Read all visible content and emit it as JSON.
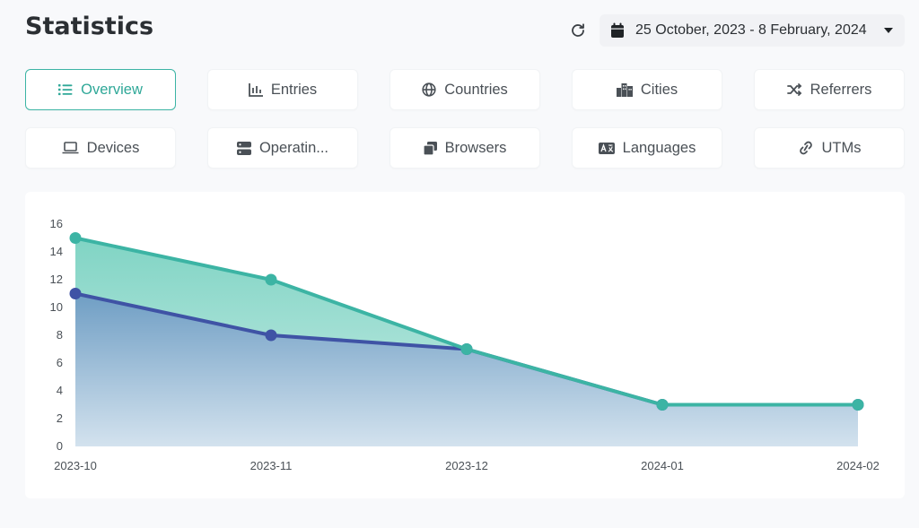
{
  "header": {
    "title": "Statistics",
    "date_range": "25 October, 2023 - 8 February, 2024"
  },
  "tabs": [
    {
      "label": "Overview",
      "icon": "list-icon",
      "active": true
    },
    {
      "label": "Entries",
      "icon": "bar-chart-icon",
      "active": false
    },
    {
      "label": "Countries",
      "icon": "globe-icon",
      "active": false
    },
    {
      "label": "Cities",
      "icon": "city-icon",
      "active": false
    },
    {
      "label": "Referrers",
      "icon": "shuffle-icon",
      "active": false
    },
    {
      "label": "Devices",
      "icon": "laptop-icon",
      "active": false
    },
    {
      "label": "Operatin...",
      "icon": "server-icon",
      "active": false
    },
    {
      "label": "Browsers",
      "icon": "windows-icon",
      "active": false
    },
    {
      "label": "Languages",
      "icon": "language-icon",
      "active": false
    },
    {
      "label": "UTMs",
      "icon": "link-icon",
      "active": false
    }
  ],
  "colors": {
    "accent": "#3cb4a4",
    "series_teal": "#3cb4a4",
    "series_blue": "#3f53a5"
  },
  "chart_data": {
    "type": "area",
    "categories": [
      "2023-10",
      "2023-11",
      "2023-12",
      "2024-01",
      "2024-02"
    ],
    "ylim": [
      0,
      16
    ],
    "yticks": [
      0,
      2,
      4,
      6,
      8,
      10,
      12,
      14,
      16
    ],
    "grid": false,
    "series": [
      {
        "values": [
          15,
          12,
          7,
          3,
          3
        ],
        "color": "#3cb4a4"
      },
      {
        "values": [
          11,
          8,
          7,
          3,
          3
        ],
        "color": "#3f53a5"
      }
    ]
  }
}
